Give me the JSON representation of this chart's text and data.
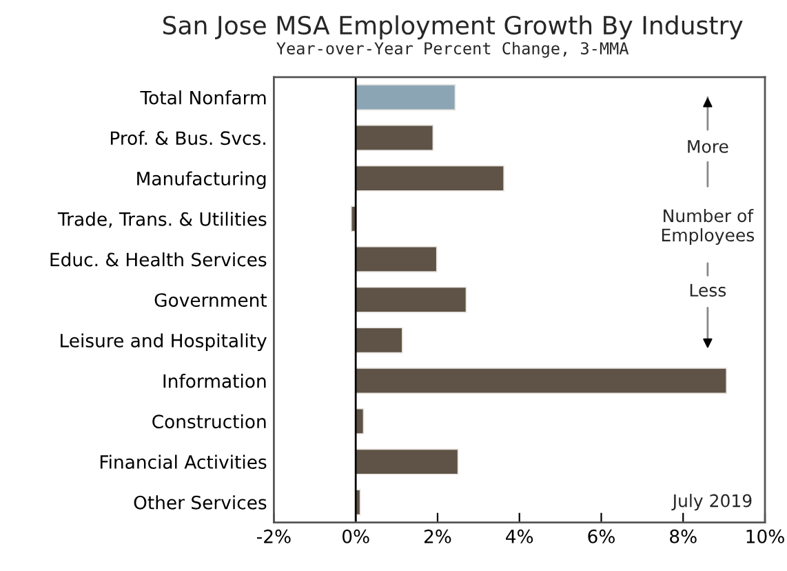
{
  "chart_data": {
    "type": "bar",
    "orientation": "horizontal",
    "title": "San Jose MSA Employment Growth By Industry",
    "subtitle": "Year-over-Year Percent Change, 3-MMA",
    "categories": [
      "Total Nonfarm",
      "Prof. & Bus. Svcs.",
      "Manufacturing",
      "Trade, Trans. & Utilities",
      "Educ. & Health Services",
      "Government",
      "Leisure and Hospitality",
      "Information",
      "Construction",
      "Financial Activities",
      "Other Services"
    ],
    "values": [
      2.43,
      1.89,
      3.62,
      -0.11,
      1.98,
      2.7,
      1.14,
      9.06,
      0.19,
      2.5,
      0.11
    ],
    "colors": [
      "#8ca5b5",
      "#5e5346",
      "#5e5346",
      "#5e5346",
      "#5e5346",
      "#5e5346",
      "#5e5346",
      "#5e5346",
      "#5e5346",
      "#5e5346",
      "#5e5346"
    ],
    "xlim": [
      -2,
      10
    ],
    "xticks": [
      {
        "value": -2,
        "label": "-2%"
      },
      {
        "value": 0,
        "label": "0%"
      },
      {
        "value": 2,
        "label": "2%"
      },
      {
        "value": 4,
        "label": "4%"
      },
      {
        "value": 6,
        "label": "6%"
      },
      {
        "value": 8,
        "label": "8%"
      },
      {
        "value": 10,
        "label": "10%"
      }
    ],
    "annotations": [
      "More",
      "Number of\nEmployees",
      "Less",
      "July 2019"
    ],
    "ref_lines": [
      {
        "axis": "x",
        "value": 0,
        "color": "#000000"
      }
    ],
    "grid": false,
    "legend": false
  }
}
